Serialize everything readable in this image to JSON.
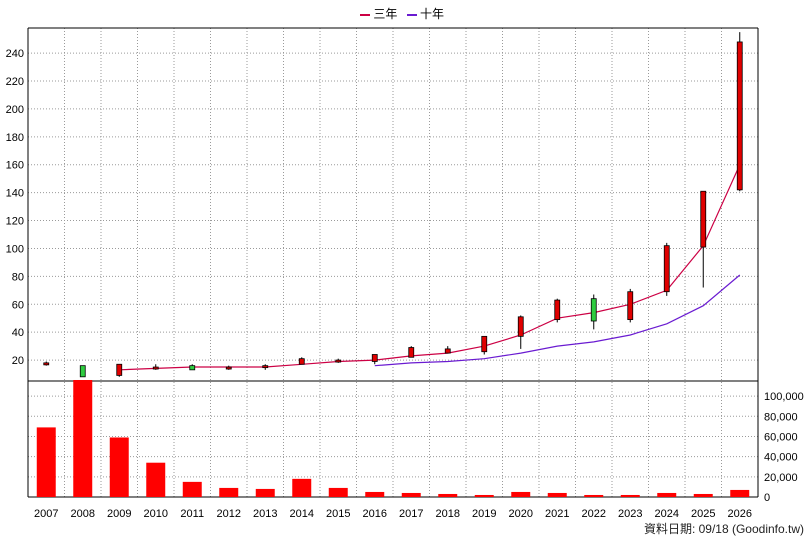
{
  "legend": {
    "items": [
      {
        "label": "三年",
        "color": "#cc0044"
      },
      {
        "label": "十年",
        "color": "#6a1bd1"
      }
    ]
  },
  "footer": {
    "date_text": "資料日期: 09/18  (Goodinfo.tw)"
  },
  "chart_data": {
    "type": "candlestick+line+bar",
    "categories": [
      "2007",
      "2008",
      "2009",
      "2010",
      "2011",
      "2012",
      "2013",
      "2014",
      "2015",
      "2016",
      "2017",
      "2018",
      "2019",
      "2020",
      "2021",
      "2022",
      "2023",
      "2024",
      "2025",
      "2026"
    ],
    "price_axis": {
      "ylim": [
        5,
        258
      ],
      "ticks": [
        20,
        40,
        60,
        80,
        100,
        120,
        140,
        160,
        180,
        200,
        220,
        240
      ]
    },
    "volume_axis": {
      "ylim": [
        0,
        115000
      ],
      "ticks": [
        0,
        20000,
        40000,
        60000,
        80000,
        100000
      ],
      "tick_labels": [
        "0",
        "20,000",
        "40,000",
        "60,000",
        "80,000",
        "100,000"
      ]
    },
    "candles": [
      {
        "open": 17,
        "close": 18,
        "high": 19,
        "low": 16
      },
      {
        "open": 16,
        "close": 8,
        "high": 16,
        "low": 8
      },
      {
        "open": 9,
        "close": 17,
        "high": 17,
        "low": 8
      },
      {
        "open": 15,
        "close": 15,
        "high": 17,
        "low": 13
      },
      {
        "open": 16,
        "close": 13,
        "high": 17,
        "low": 13
      },
      {
        "open": 14,
        "close": 15,
        "high": 16,
        "low": 13
      },
      {
        "open": 15,
        "close": 16,
        "high": 17,
        "low": 13
      },
      {
        "open": 17,
        "close": 21,
        "high": 22,
        "low": 17
      },
      {
        "open": 19,
        "close": 20,
        "high": 21,
        "low": 18
      },
      {
        "open": 19,
        "close": 24,
        "high": 24,
        "low": 17
      },
      {
        "open": 22,
        "close": 29,
        "high": 30,
        "low": 22
      },
      {
        "open": 25,
        "close": 28,
        "high": 30,
        "low": 25
      },
      {
        "open": 26,
        "close": 37,
        "high": 37,
        "low": 24
      },
      {
        "open": 37,
        "close": 51,
        "high": 52,
        "low": 28
      },
      {
        "open": 49,
        "close": 63,
        "high": 64,
        "low": 47
      },
      {
        "open": 64,
        "close": 48,
        "high": 67,
        "low": 42
      },
      {
        "open": 49,
        "close": 69,
        "high": 71,
        "low": 47
      },
      {
        "open": 69,
        "close": 102,
        "high": 104,
        "low": 66
      },
      {
        "open": 101,
        "close": 141,
        "high": 141,
        "low": 72
      },
      {
        "open": 142,
        "close": 248,
        "high": 255,
        "low": 141
      }
    ],
    "series": [
      {
        "name": "三年",
        "color": "#cc0044",
        "values": [
          null,
          null,
          13,
          14,
          15,
          15,
          15,
          17,
          19,
          20,
          23,
          25,
          30,
          38,
          50,
          54,
          60,
          70,
          102,
          160
        ]
      },
      {
        "name": "十年",
        "color": "#6a1bd1",
        "values": [
          null,
          null,
          null,
          null,
          null,
          null,
          null,
          null,
          null,
          16,
          18,
          19,
          21,
          25,
          30,
          33,
          38,
          46,
          59,
          81
        ]
      }
    ],
    "volume": [
      69000,
      116000,
      59000,
      34000,
      15000,
      9000,
      8000,
      18000,
      9000,
      5000,
      4000,
      3000,
      2000,
      5000,
      4000,
      2000,
      2000,
      4000,
      3000,
      7000
    ]
  }
}
